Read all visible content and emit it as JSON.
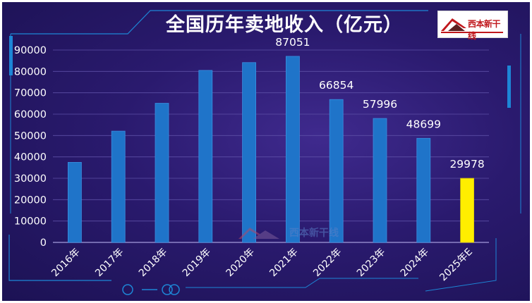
{
  "chart_data": {
    "type": "bar",
    "title": "全国历年卖地收入（亿元）",
    "categories": [
      "2016年",
      "2017年",
      "2018年",
      "2019年",
      "2020年",
      "2021年",
      "2022年",
      "2023年",
      "2024年",
      "2025年E"
    ],
    "values": [
      37457,
      52059,
      65096,
      80479,
      84142,
      87051,
      66854,
      57996,
      48699,
      29978
    ],
    "data_labels": [
      "",
      "",
      "",
      "",
      "",
      "87051",
      "66854",
      "57996",
      "48699",
      "29978"
    ],
    "ylim": [
      0,
      90000
    ],
    "yticks": [
      "0",
      "10000",
      "20000",
      "30000",
      "40000",
      "50000",
      "60000",
      "70000",
      "80000",
      "90000"
    ],
    "grid": true,
    "bar_color": "#1f74c9",
    "highlight_color": "#ffee00",
    "highlight_index": 9
  },
  "logo": {
    "text": "西本新干线"
  },
  "watermark": {
    "text": "西本新干线"
  }
}
